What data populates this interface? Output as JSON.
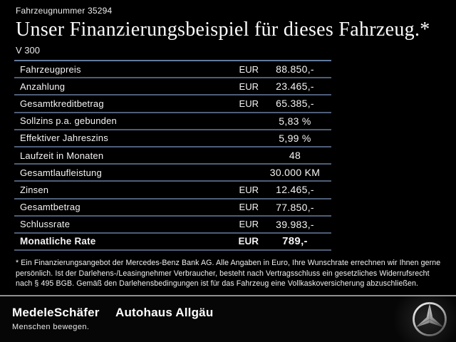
{
  "header": {
    "vehicle_number": "Fahrzeugnummer 35294",
    "title": "Unser Finanzierungsbeispiel für dieses Fahrzeug.*",
    "model": "V 300"
  },
  "table": {
    "rows": [
      {
        "label": "Fahrzeugpreis",
        "currency": "EUR",
        "value": "88.850,-",
        "bold": false
      },
      {
        "label": "Anzahlung",
        "currency": "EUR",
        "value": "23.465,-",
        "bold": false
      },
      {
        "label": "Gesamtkreditbetrag",
        "currency": "EUR",
        "value": "65.385,-",
        "bold": false
      },
      {
        "label": "Sollzins p.a. gebunden",
        "currency": "",
        "value": "5,83 %",
        "bold": false
      },
      {
        "label": "Effektiver Jahreszins",
        "currency": "",
        "value": "5,99 %",
        "bold": false
      },
      {
        "label": "Laufzeit in Monaten",
        "currency": "",
        "value": "48",
        "bold": false
      },
      {
        "label": "Gesamtlaufleistung",
        "currency": "",
        "value": "30.000 KM",
        "bold": false
      },
      {
        "label": "Zinsen",
        "currency": "EUR",
        "value": "12.465,-",
        "bold": false
      },
      {
        "label": "Gesamtbetrag",
        "currency": "EUR",
        "value": "77.850,-",
        "bold": false
      },
      {
        "label": "Schlussrate",
        "currency": "EUR",
        "value": "39.983,-",
        "bold": false
      },
      {
        "label": "Monatliche Rate",
        "currency": "EUR",
        "value": "789,-",
        "bold": true
      }
    ]
  },
  "footnote": "* Ein Finanzierungsangebot der Mercedes-Benz Bank AG. Alle Angaben in Euro, Ihre Wunschrate errechnen wir Ihnen gerne persönlich. Ist der Darlehens-/Leasingnehmer Verbraucher, besteht nach Vertragsschluss ein gesetzliches Widerrufsrecht nach § 495 BGB. Gemäß den Darlehensbedingungen ist für das Fahrzeug eine Vollkaskoversicherung abzuschließen.",
  "footer": {
    "dealer_logo": "MedeleSchäfer",
    "dealer_tagline": "Menschen bewegen.",
    "dealer_logo_2": "Autohaus Allgäu",
    "brand_icon": "mercedes-star-icon"
  },
  "colors": {
    "background": "#000000",
    "table_line": "#4d5e78",
    "table_line_top": "#617a9c",
    "footer_divider": "#8f8f8f",
    "text": "#ffffff"
  }
}
